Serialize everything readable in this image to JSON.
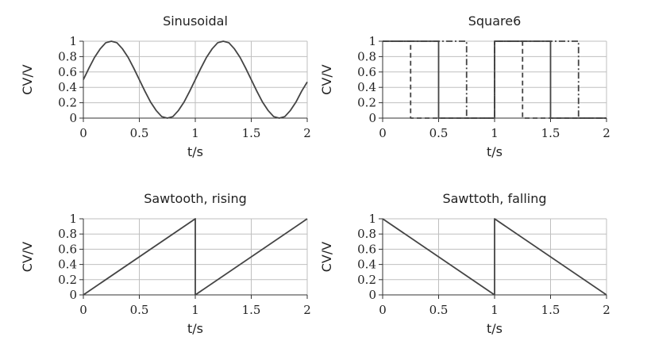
{
  "chart_data": [
    {
      "type": "line",
      "title": "Sinusoidal",
      "xlabel": "t/s",
      "ylabel": "CV/V",
      "xlim": [
        0,
        2
      ],
      "ylim": [
        0,
        1
      ],
      "xticks": [
        "0",
        "0.5",
        "1",
        "1.5",
        "2"
      ],
      "yticks": [
        "0",
        "0.2",
        "0.4",
        "0.6",
        "0.8",
        "1"
      ],
      "grid": true,
      "series": [
        {
          "line_style": "solid",
          "x": [
            0,
            0.05,
            0.1,
            0.15,
            0.2,
            0.25,
            0.3,
            0.35,
            0.4,
            0.45,
            0.5,
            0.55,
            0.6,
            0.65,
            0.7,
            0.75,
            0.8,
            0.85,
            0.9,
            0.95,
            1.0,
            1.05,
            1.1,
            1.15,
            1.2,
            1.25,
            1.3,
            1.35,
            1.4,
            1.45,
            1.5,
            1.55,
            1.6,
            1.65,
            1.7,
            1.75,
            1.8,
            1.85,
            1.9,
            1.95,
            2.0
          ],
          "y": [
            0.5,
            0.65,
            0.79,
            0.9,
            0.98,
            1.0,
            0.98,
            0.9,
            0.79,
            0.65,
            0.5,
            0.35,
            0.21,
            0.1,
            0.02,
            0.0,
            0.02,
            0.1,
            0.21,
            0.35,
            0.5,
            0.65,
            0.79,
            0.9,
            0.98,
            1.0,
            0.98,
            0.9,
            0.79,
            0.65,
            0.5,
            0.35,
            0.21,
            0.1,
            0.02,
            0.0,
            0.02,
            0.1,
            0.21,
            0.35,
            0.47
          ]
        }
      ]
    },
    {
      "type": "line",
      "title": "Square6",
      "xlabel": "t/s",
      "ylabel": "CV/V",
      "xlim": [
        0,
        2
      ],
      "ylim": [
        0,
        1
      ],
      "xticks": [
        "0",
        "0.5",
        "1",
        "1.5",
        "2"
      ],
      "yticks": [
        "0",
        "0.2",
        "0.4",
        "0.6",
        "0.8",
        "1"
      ],
      "grid": true,
      "series": [
        {
          "line_style": "solid",
          "x": [
            0,
            0.5,
            0.5,
            1.0,
            1.0,
            1.5,
            1.5,
            2.0
          ],
          "y": [
            1,
            1,
            0,
            0,
            1,
            1,
            0,
            0
          ]
        },
        {
          "line_style": "dashed",
          "x": [
            0,
            0.25,
            0.25,
            1.0,
            1.0,
            1.25,
            1.25,
            2.0
          ],
          "y": [
            1,
            1,
            0,
            0,
            1,
            1,
            0,
            0
          ]
        },
        {
          "line_style": "dashdot",
          "x": [
            0,
            0.75,
            0.75,
            1.0,
            1.0,
            1.75,
            1.75,
            2.0
          ],
          "y": [
            1,
            1,
            0,
            0,
            1,
            1,
            0,
            0
          ]
        }
      ]
    },
    {
      "type": "line",
      "title": "Sawtooth, rising",
      "xlabel": "t/s",
      "ylabel": "CV/V",
      "xlim": [
        0,
        2
      ],
      "ylim": [
        0,
        1
      ],
      "xticks": [
        "0",
        "0.5",
        "1",
        "1.5",
        "2"
      ],
      "yticks": [
        "0",
        "0.2",
        "0.4",
        "0.6",
        "0.8",
        "1"
      ],
      "grid": true,
      "series": [
        {
          "line_style": "solid",
          "x": [
            0,
            1.0,
            1.0,
            2.0
          ],
          "y": [
            0,
            1,
            0,
            1
          ]
        }
      ]
    },
    {
      "type": "line",
      "title": "Sawttoth, falling",
      "xlabel": "t/s",
      "ylabel": "CV/V",
      "xlim": [
        0,
        2
      ],
      "ylim": [
        0,
        1
      ],
      "xticks": [
        "0",
        "0.5",
        "1",
        "1.5",
        "2"
      ],
      "yticks": [
        "0",
        "0.2",
        "0.4",
        "0.6",
        "0.8",
        "1"
      ],
      "grid": true,
      "series": [
        {
          "line_style": "solid",
          "x": [
            0,
            1.0,
            1.0,
            2.0
          ],
          "y": [
            1,
            0,
            1,
            0
          ]
        }
      ]
    }
  ],
  "colors": {
    "line": "#444444",
    "grid": "#bfbfbf",
    "axis": "#333333"
  }
}
